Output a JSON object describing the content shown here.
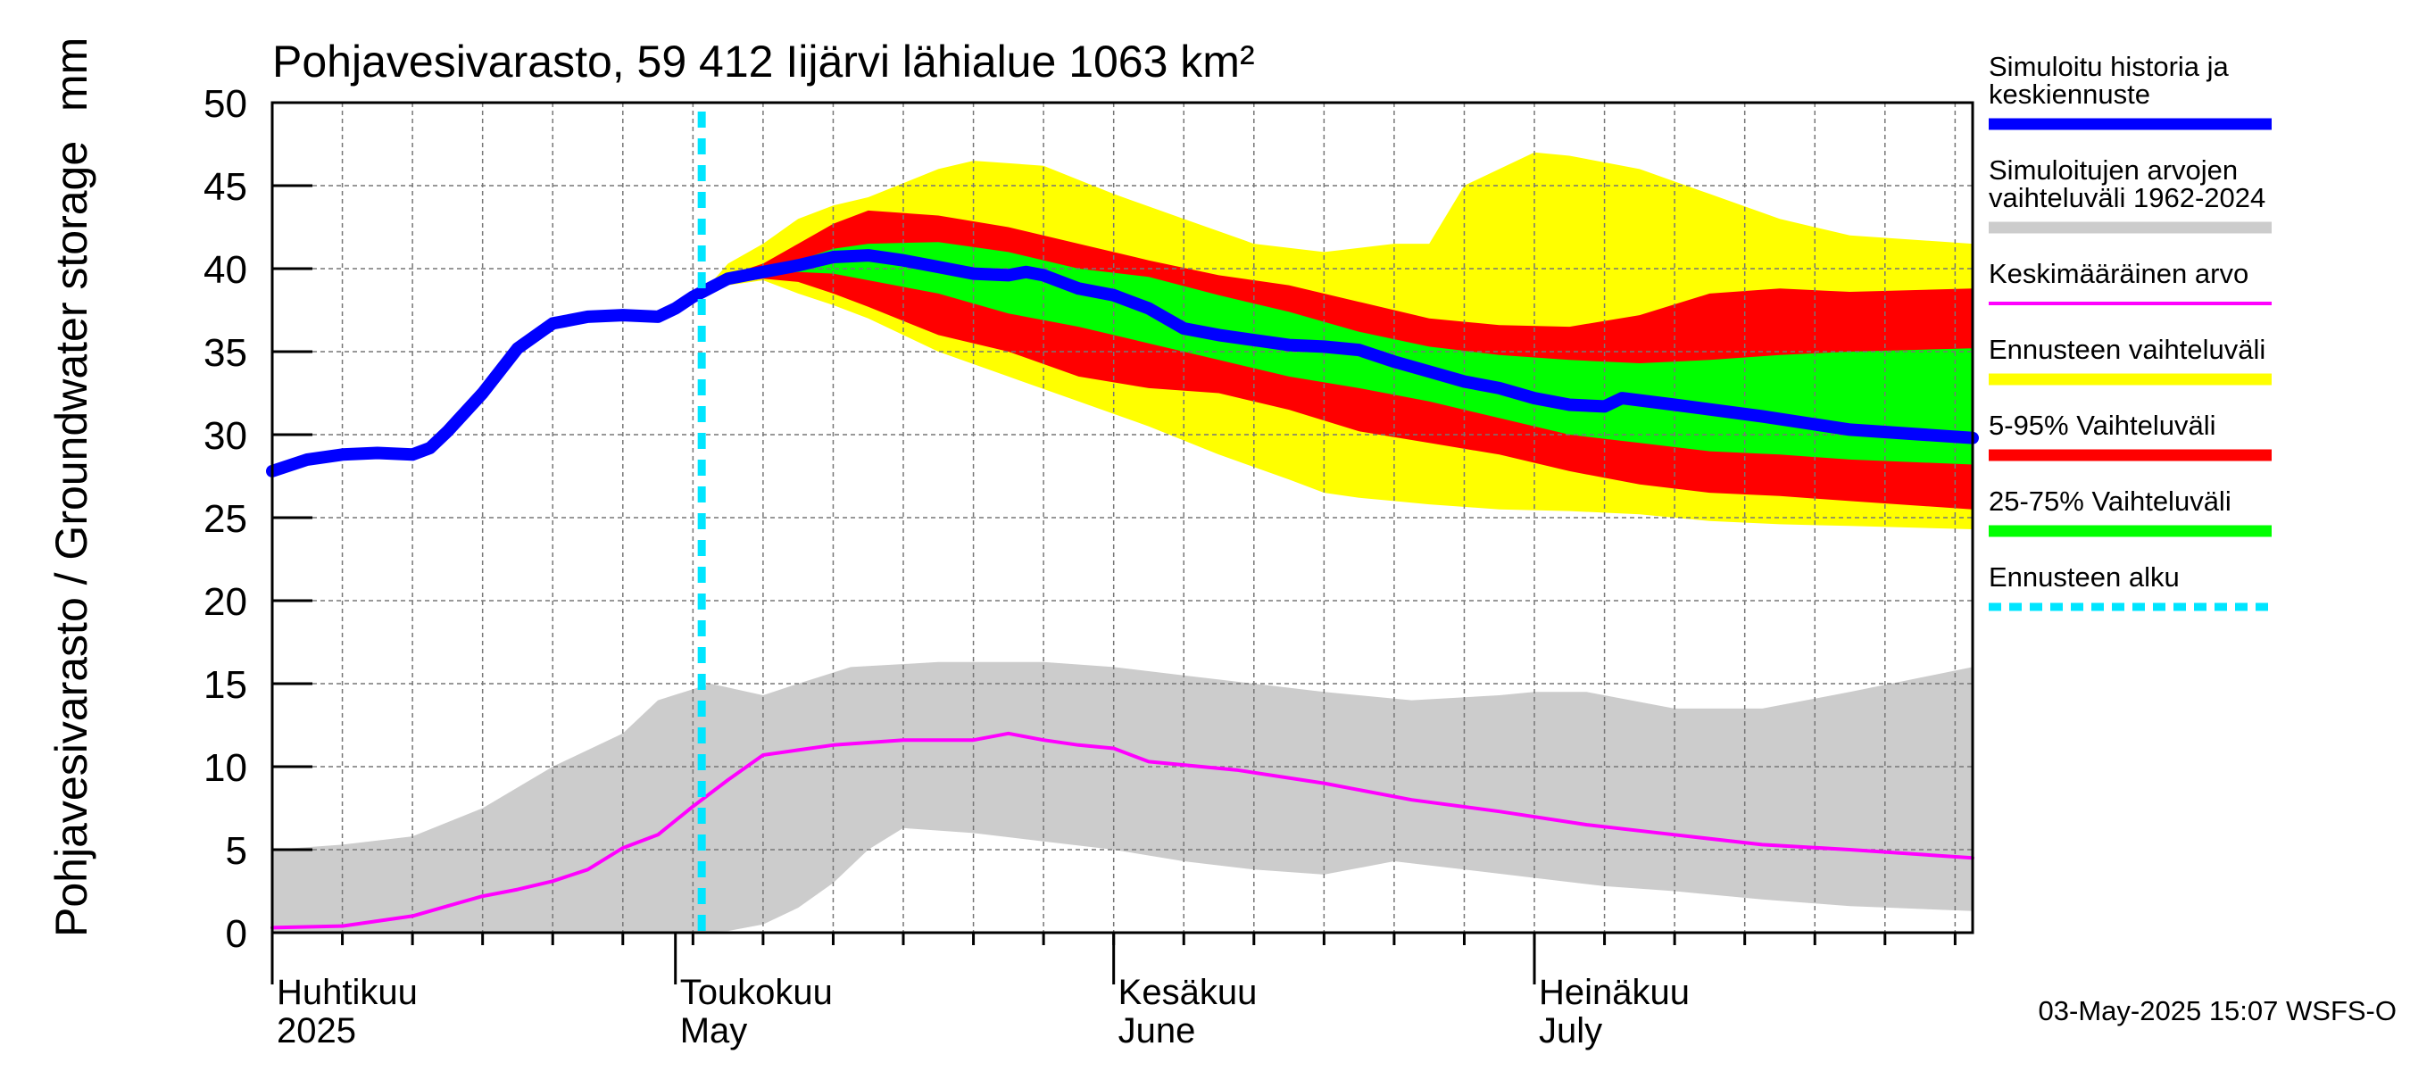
{
  "colors": {
    "history": "#0000ff",
    "range_sim": "#cccccc",
    "mean": "#ff00ff",
    "forecast_range": "#ffff00",
    "p5_95": "#ff0000",
    "p25_75": "#00ff00",
    "forecast_start": "#00e5ff"
  },
  "chart_data": {
    "type": "area",
    "title": "Pohjavesivarasto, 59 412 Iijärvi lähialue 1063 km²",
    "ylabel": "Pohjavesivarasto / Groundwater storage",
    "yunit": "mm",
    "ylim": [
      0,
      50
    ],
    "yticks": [
      0,
      5,
      10,
      15,
      20,
      25,
      30,
      35,
      40,
      45,
      50
    ],
    "x_unit": "days since 2025-03-25",
    "xlim": [
      0,
      97
    ],
    "month_labels": [
      {
        "day": 0,
        "fi": "Huhtikuu",
        "en": "2025"
      },
      {
        "day": 23,
        "fi": "Toukokuu",
        "en": "May"
      },
      {
        "day": 48,
        "fi": "Kesäkuu",
        "en": "June"
      },
      {
        "day": 72,
        "fi": "Heinäkuu",
        "en": "July"
      }
    ],
    "forecast_start_day": 24.5,
    "series": [
      {
        "name": "Simuloitu historia ja keskiennuste",
        "role": "history",
        "points": [
          [
            0,
            27.8
          ],
          [
            2,
            28.5
          ],
          [
            4,
            28.8
          ],
          [
            6,
            28.9
          ],
          [
            8,
            28.8
          ],
          [
            9,
            29.2
          ],
          [
            10,
            30.2
          ],
          [
            12,
            32.5
          ],
          [
            14,
            35.2
          ],
          [
            16,
            36.7
          ],
          [
            18,
            37.1
          ],
          [
            20,
            37.2
          ],
          [
            22,
            37.1
          ],
          [
            23,
            37.6
          ],
          [
            24,
            38.3
          ],
          [
            26,
            39.4
          ],
          [
            28,
            39.8
          ],
          [
            30,
            40.2
          ],
          [
            32,
            40.7
          ],
          [
            34,
            40.8
          ],
          [
            36,
            40.5
          ],
          [
            38,
            40.1
          ],
          [
            40,
            39.7
          ],
          [
            42,
            39.6
          ],
          [
            43,
            39.8
          ],
          [
            44,
            39.6
          ],
          [
            46,
            38.8
          ],
          [
            48,
            38.4
          ],
          [
            50,
            37.6
          ],
          [
            52,
            36.4
          ],
          [
            54,
            36.0
          ],
          [
            56,
            35.7
          ],
          [
            58,
            35.4
          ],
          [
            60,
            35.3
          ],
          [
            62,
            35.1
          ],
          [
            64,
            34.4
          ],
          [
            66,
            33.8
          ],
          [
            68,
            33.2
          ],
          [
            70,
            32.8
          ],
          [
            72,
            32.2
          ],
          [
            74,
            31.8
          ],
          [
            76,
            31.7
          ],
          [
            77,
            32.2
          ],
          [
            80,
            31.8
          ],
          [
            85,
            31.1
          ],
          [
            90,
            30.3
          ],
          [
            97,
            29.8
          ]
        ]
      },
      {
        "name": "Keskimääräinen arvo",
        "role": "mean",
        "points": [
          [
            0,
            0.3
          ],
          [
            4,
            0.4
          ],
          [
            6,
            0.7
          ],
          [
            8,
            1.0
          ],
          [
            10,
            1.6
          ],
          [
            12,
            2.2
          ],
          [
            14,
            2.6
          ],
          [
            16,
            3.1
          ],
          [
            18,
            3.8
          ],
          [
            20,
            5.1
          ],
          [
            22,
            5.9
          ],
          [
            24,
            7.6
          ],
          [
            26,
            9.2
          ],
          [
            28,
            10.7
          ],
          [
            30,
            11.0
          ],
          [
            32,
            11.3
          ],
          [
            36,
            11.6
          ],
          [
            40,
            11.6
          ],
          [
            42,
            12.0
          ],
          [
            44,
            11.6
          ],
          [
            46,
            11.3
          ],
          [
            48,
            11.1
          ],
          [
            50,
            10.3
          ],
          [
            55,
            9.8
          ],
          [
            60,
            9.0
          ],
          [
            65,
            8.0
          ],
          [
            70,
            7.3
          ],
          [
            75,
            6.5
          ],
          [
            80,
            5.9
          ],
          [
            85,
            5.3
          ],
          [
            90,
            5.0
          ],
          [
            97,
            4.5
          ]
        ]
      }
    ],
    "bands": [
      {
        "name": "Simuloitujen arvojen vaihteluväli 1962-2024",
        "role": "range_sim",
        "upper": [
          [
            0,
            5
          ],
          [
            4,
            5.3
          ],
          [
            8,
            5.8
          ],
          [
            12,
            7.5
          ],
          [
            16,
            10
          ],
          [
            20,
            12
          ],
          [
            22,
            14
          ],
          [
            25,
            15
          ],
          [
            28,
            14.3
          ],
          [
            30,
            15
          ],
          [
            33,
            16
          ],
          [
            38,
            16.3
          ],
          [
            44,
            16.3
          ],
          [
            48,
            16
          ],
          [
            52,
            15.5
          ],
          [
            56,
            15
          ],
          [
            60,
            14.5
          ],
          [
            65,
            14
          ],
          [
            70,
            14.3
          ],
          [
            72,
            14.5
          ],
          [
            75,
            14.5
          ],
          [
            80,
            13.5
          ],
          [
            85,
            13.5
          ],
          [
            90,
            14.5
          ],
          [
            97,
            16
          ]
        ],
        "lower": [
          [
            0,
            0
          ],
          [
            8,
            0
          ],
          [
            16,
            0
          ],
          [
            22,
            0
          ],
          [
            26,
            0.1
          ],
          [
            28,
            0.5
          ],
          [
            30,
            1.5
          ],
          [
            32,
            3
          ],
          [
            34,
            5
          ],
          [
            36,
            6.3
          ],
          [
            40,
            6
          ],
          [
            44,
            5.5
          ],
          [
            48,
            5
          ],
          [
            52,
            4.3
          ],
          [
            56,
            3.8
          ],
          [
            60,
            3.5
          ],
          [
            64,
            4.3
          ],
          [
            68,
            3.8
          ],
          [
            72,
            3.3
          ],
          [
            76,
            2.8
          ],
          [
            80,
            2.5
          ],
          [
            85,
            2
          ],
          [
            90,
            1.6
          ],
          [
            97,
            1.3
          ]
        ]
      },
      {
        "name": "Ennusteen vaihteluväli",
        "role": "forecast_range",
        "upper": [
          [
            24.5,
            38.5
          ],
          [
            26,
            40.3
          ],
          [
            28,
            41.5
          ],
          [
            30,
            43
          ],
          [
            32,
            43.8
          ],
          [
            34,
            44.3
          ],
          [
            38,
            46
          ],
          [
            40,
            46.5
          ],
          [
            44,
            46.2
          ],
          [
            48,
            44.5
          ],
          [
            52,
            43
          ],
          [
            56,
            41.5
          ],
          [
            60,
            41
          ],
          [
            64,
            41.5
          ],
          [
            66,
            41.5
          ],
          [
            68,
            45
          ],
          [
            70,
            46
          ],
          [
            72,
            47
          ],
          [
            74,
            46.8
          ],
          [
            78,
            46
          ],
          [
            82,
            44.5
          ],
          [
            86,
            43
          ],
          [
            90,
            42
          ],
          [
            97,
            41.5
          ]
        ],
        "lower": [
          [
            24.5,
            38.2
          ],
          [
            26,
            39
          ],
          [
            28,
            39.3
          ],
          [
            30,
            38.5
          ],
          [
            32,
            37.8
          ],
          [
            34,
            37
          ],
          [
            38,
            35
          ],
          [
            42,
            33.5
          ],
          [
            46,
            32
          ],
          [
            50,
            30.5
          ],
          [
            54,
            28.8
          ],
          [
            58,
            27.3
          ],
          [
            60,
            26.5
          ],
          [
            62,
            26.2
          ],
          [
            64,
            26
          ],
          [
            66,
            25.8
          ],
          [
            70,
            25.5
          ],
          [
            74,
            25.4
          ],
          [
            78,
            25.2
          ],
          [
            82,
            24.8
          ],
          [
            86,
            24.6
          ],
          [
            90,
            24.5
          ],
          [
            97,
            24.3
          ]
        ]
      },
      {
        "name": "5-95% Vaihteluväli",
        "role": "p5_95",
        "upper": [
          [
            24.5,
            38.4
          ],
          [
            26,
            39.6
          ],
          [
            28,
            40.3
          ],
          [
            30,
            41.5
          ],
          [
            32,
            42.7
          ],
          [
            34,
            43.5
          ],
          [
            38,
            43.2
          ],
          [
            42,
            42.5
          ],
          [
            46,
            41.5
          ],
          [
            50,
            40.5
          ],
          [
            54,
            39.6
          ],
          [
            58,
            39
          ],
          [
            62,
            38
          ],
          [
            66,
            37
          ],
          [
            70,
            36.6
          ],
          [
            74,
            36.5
          ],
          [
            78,
            37.2
          ],
          [
            82,
            38.5
          ],
          [
            86,
            38.8
          ],
          [
            90,
            38.6
          ],
          [
            97,
            38.8
          ]
        ],
        "lower": [
          [
            24.5,
            38.2
          ],
          [
            26,
            39.1
          ],
          [
            28,
            39.4
          ],
          [
            30,
            39.2
          ],
          [
            32,
            38.5
          ],
          [
            34,
            37.7
          ],
          [
            38,
            36
          ],
          [
            42,
            35
          ],
          [
            46,
            33.5
          ],
          [
            50,
            32.8
          ],
          [
            54,
            32.5
          ],
          [
            58,
            31.5
          ],
          [
            62,
            30.2
          ],
          [
            66,
            29.5
          ],
          [
            70,
            28.8
          ],
          [
            74,
            27.8
          ],
          [
            78,
            27
          ],
          [
            82,
            26.5
          ],
          [
            86,
            26.3
          ],
          [
            90,
            26
          ],
          [
            97,
            25.5
          ]
        ]
      },
      {
        "name": "25-75% Vaihteluväli",
        "role": "p25_75",
        "upper": [
          [
            24.5,
            38.3
          ],
          [
            26,
            39.4
          ],
          [
            28,
            39.9
          ],
          [
            30,
            40.5
          ],
          [
            32,
            41.2
          ],
          [
            34,
            41.5
          ],
          [
            38,
            41.6
          ],
          [
            42,
            41
          ],
          [
            46,
            40
          ],
          [
            50,
            39.5
          ],
          [
            54,
            38.4
          ],
          [
            58,
            37.4
          ],
          [
            62,
            36.2
          ],
          [
            66,
            35.3
          ],
          [
            70,
            34.8
          ],
          [
            74,
            34.5
          ],
          [
            78,
            34.3
          ],
          [
            82,
            34.5
          ],
          [
            86,
            34.8
          ],
          [
            90,
            35
          ],
          [
            97,
            35.2
          ]
        ],
        "lower": [
          [
            24.5,
            38.2
          ],
          [
            26,
            39.2
          ],
          [
            28,
            39.6
          ],
          [
            30,
            39.8
          ],
          [
            32,
            39.7
          ],
          [
            34,
            39.3
          ],
          [
            38,
            38.5
          ],
          [
            42,
            37.3
          ],
          [
            46,
            36.5
          ],
          [
            50,
            35.5
          ],
          [
            54,
            34.5
          ],
          [
            58,
            33.5
          ],
          [
            62,
            32.8
          ],
          [
            66,
            32.0
          ],
          [
            70,
            31.0
          ],
          [
            74,
            30.0
          ],
          [
            78,
            29.5
          ],
          [
            82,
            29.0
          ],
          [
            86,
            28.8
          ],
          [
            90,
            28.5
          ],
          [
            97,
            28.2
          ]
        ]
      }
    ],
    "legend": {
      "position": "right",
      "entries": [
        {
          "label": "Simuloitu historia ja keskiennuste",
          "style": "thick",
          "role": "history"
        },
        {
          "label": "Simuloitujen arvojen vaihteluväli 1962-2024",
          "style": "thick",
          "role": "range_sim"
        },
        {
          "label": "Keskimääräinen arvo",
          "style": "thin",
          "role": "mean"
        },
        {
          "label": "Ennusteen vaihteluväli",
          "style": "thick",
          "role": "forecast_range"
        },
        {
          "label": "5-95% Vaihteluväli",
          "style": "thick",
          "role": "p5_95"
        },
        {
          "label": "25-75% Vaihteluväli",
          "style": "thick",
          "role": "p25_75"
        },
        {
          "label": "Ennusteen alku",
          "style": "dashed",
          "role": "forecast_start"
        }
      ]
    },
    "timestamp": "03-May-2025 15:07 WSFS-O"
  }
}
